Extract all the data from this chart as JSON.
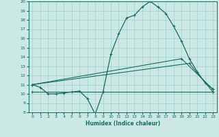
{
  "background_color": "#cce8e4",
  "grid_color": "#a8d4ce",
  "line_color": "#1a6b60",
  "xlabel": "Humidex (Indice chaleur)",
  "ylim": [
    8,
    20
  ],
  "xlim": [
    -0.5,
    23.5
  ],
  "yticks": [
    8,
    9,
    10,
    11,
    12,
    13,
    14,
    15,
    16,
    17,
    18,
    19,
    20
  ],
  "xticks": [
    0,
    1,
    2,
    3,
    4,
    5,
    6,
    7,
    8,
    9,
    10,
    11,
    12,
    13,
    14,
    15,
    16,
    17,
    18,
    19,
    20,
    21,
    22,
    23
  ],
  "line1_x": [
    0,
    1,
    2,
    3,
    4,
    5,
    6,
    7,
    8,
    9,
    10,
    11,
    12,
    13,
    14,
    15,
    16,
    17,
    18,
    19,
    20,
    21,
    22,
    23
  ],
  "line1_y": [
    11.0,
    10.7,
    10.0,
    10.0,
    10.1,
    10.2,
    10.3,
    9.5,
    7.8,
    10.2,
    14.3,
    16.5,
    18.2,
    18.5,
    19.4,
    20.0,
    19.4,
    18.7,
    17.3,
    15.7,
    13.8,
    12.4,
    11.2,
    10.5
  ],
  "line2_x": [
    0,
    19,
    23
  ],
  "line2_y": [
    11.0,
    13.8,
    10.5
  ],
  "line3_x": [
    0,
    20,
    23
  ],
  "line3_y": [
    11.0,
    13.3,
    10.2
  ],
  "line4_x": [
    0,
    23
  ],
  "line4_y": [
    10.2,
    10.2
  ]
}
